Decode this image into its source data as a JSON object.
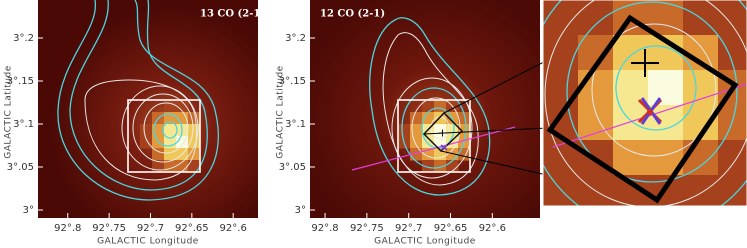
{
  "panels": [
    {
      "label": "13 CO (2-1)",
      "x_axis_label": "GALACTIC Longitude",
      "y_axis_label": "GALACTIC Latitude",
      "xlim": [
        92.836,
        92.57
      ],
      "ylim": [
        2.9907,
        3.2442
      ],
      "xticks": [
        {
          "value": 92.8,
          "label": "92°.8"
        },
        {
          "value": 92.75,
          "label": "92°.75"
        },
        {
          "value": 92.7,
          "label": "92°.7"
        },
        {
          "value": 92.65,
          "label": "92°.65"
        },
        {
          "value": 92.6,
          "label": "92°.6"
        }
      ],
      "yticks": [
        {
          "value": 3,
          "label": "3°"
        },
        {
          "value": 3.05,
          "label": "3°.05"
        },
        {
          "value": 3.1,
          "label": "3°.1"
        },
        {
          "value": 3.15,
          "label": "3°.15"
        },
        {
          "value": 3.2,
          "label": "3°.2"
        }
      ]
    },
    {
      "label": "12 CO (2-1)",
      "x_axis_label": "GALACTIC Longitude",
      "y_axis_label": "GALACTIC Latitude",
      "xlim": [
        92.818,
        92.543
      ],
      "ylim": [
        2.9907,
        3.2442
      ],
      "xticks": [
        {
          "value": 92.8,
          "label": "92°.8"
        },
        {
          "value": 92.75,
          "label": "92°.75"
        },
        {
          "value": 92.7,
          "label": "92°.7"
        },
        {
          "value": 92.65,
          "label": "92°.65"
        },
        {
          "value": 92.6,
          "label": "92°.6"
        }
      ],
      "yticks": [
        {
          "value": 3,
          "label": "3°"
        },
        {
          "value": 3.05,
          "label": "3°.05"
        },
        {
          "value": 3.1,
          "label": "3°.1"
        },
        {
          "value": 3.15,
          "label": "3°.15"
        },
        {
          "value": 3.2,
          "label": "3°.2"
        }
      ]
    }
  ]
}
